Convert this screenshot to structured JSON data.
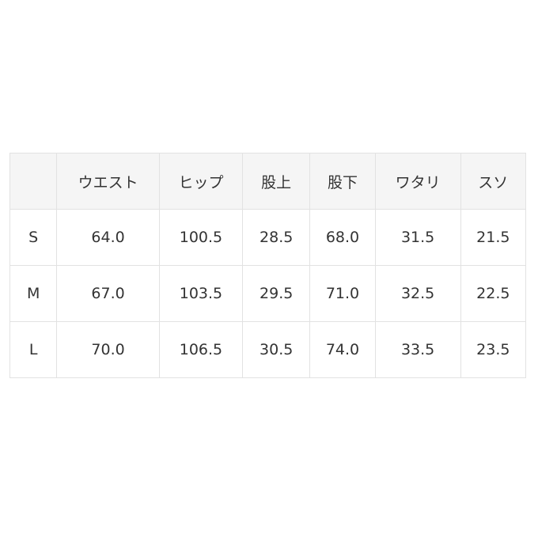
{
  "table": {
    "headers": [
      "",
      "ウエスト",
      "ヒップ",
      "股上",
      "股下",
      "ワタリ",
      "スソ"
    ],
    "rows": [
      [
        "S",
        "64.0",
        "100.5",
        "28.5",
        "68.0",
        "31.5",
        "21.5"
      ],
      [
        "M",
        "67.0",
        "103.5",
        "29.5",
        "71.0",
        "32.5",
        "22.5"
      ],
      [
        "L",
        "70.0",
        "106.5",
        "30.5",
        "74.0",
        "33.5",
        "23.5"
      ]
    ]
  }
}
